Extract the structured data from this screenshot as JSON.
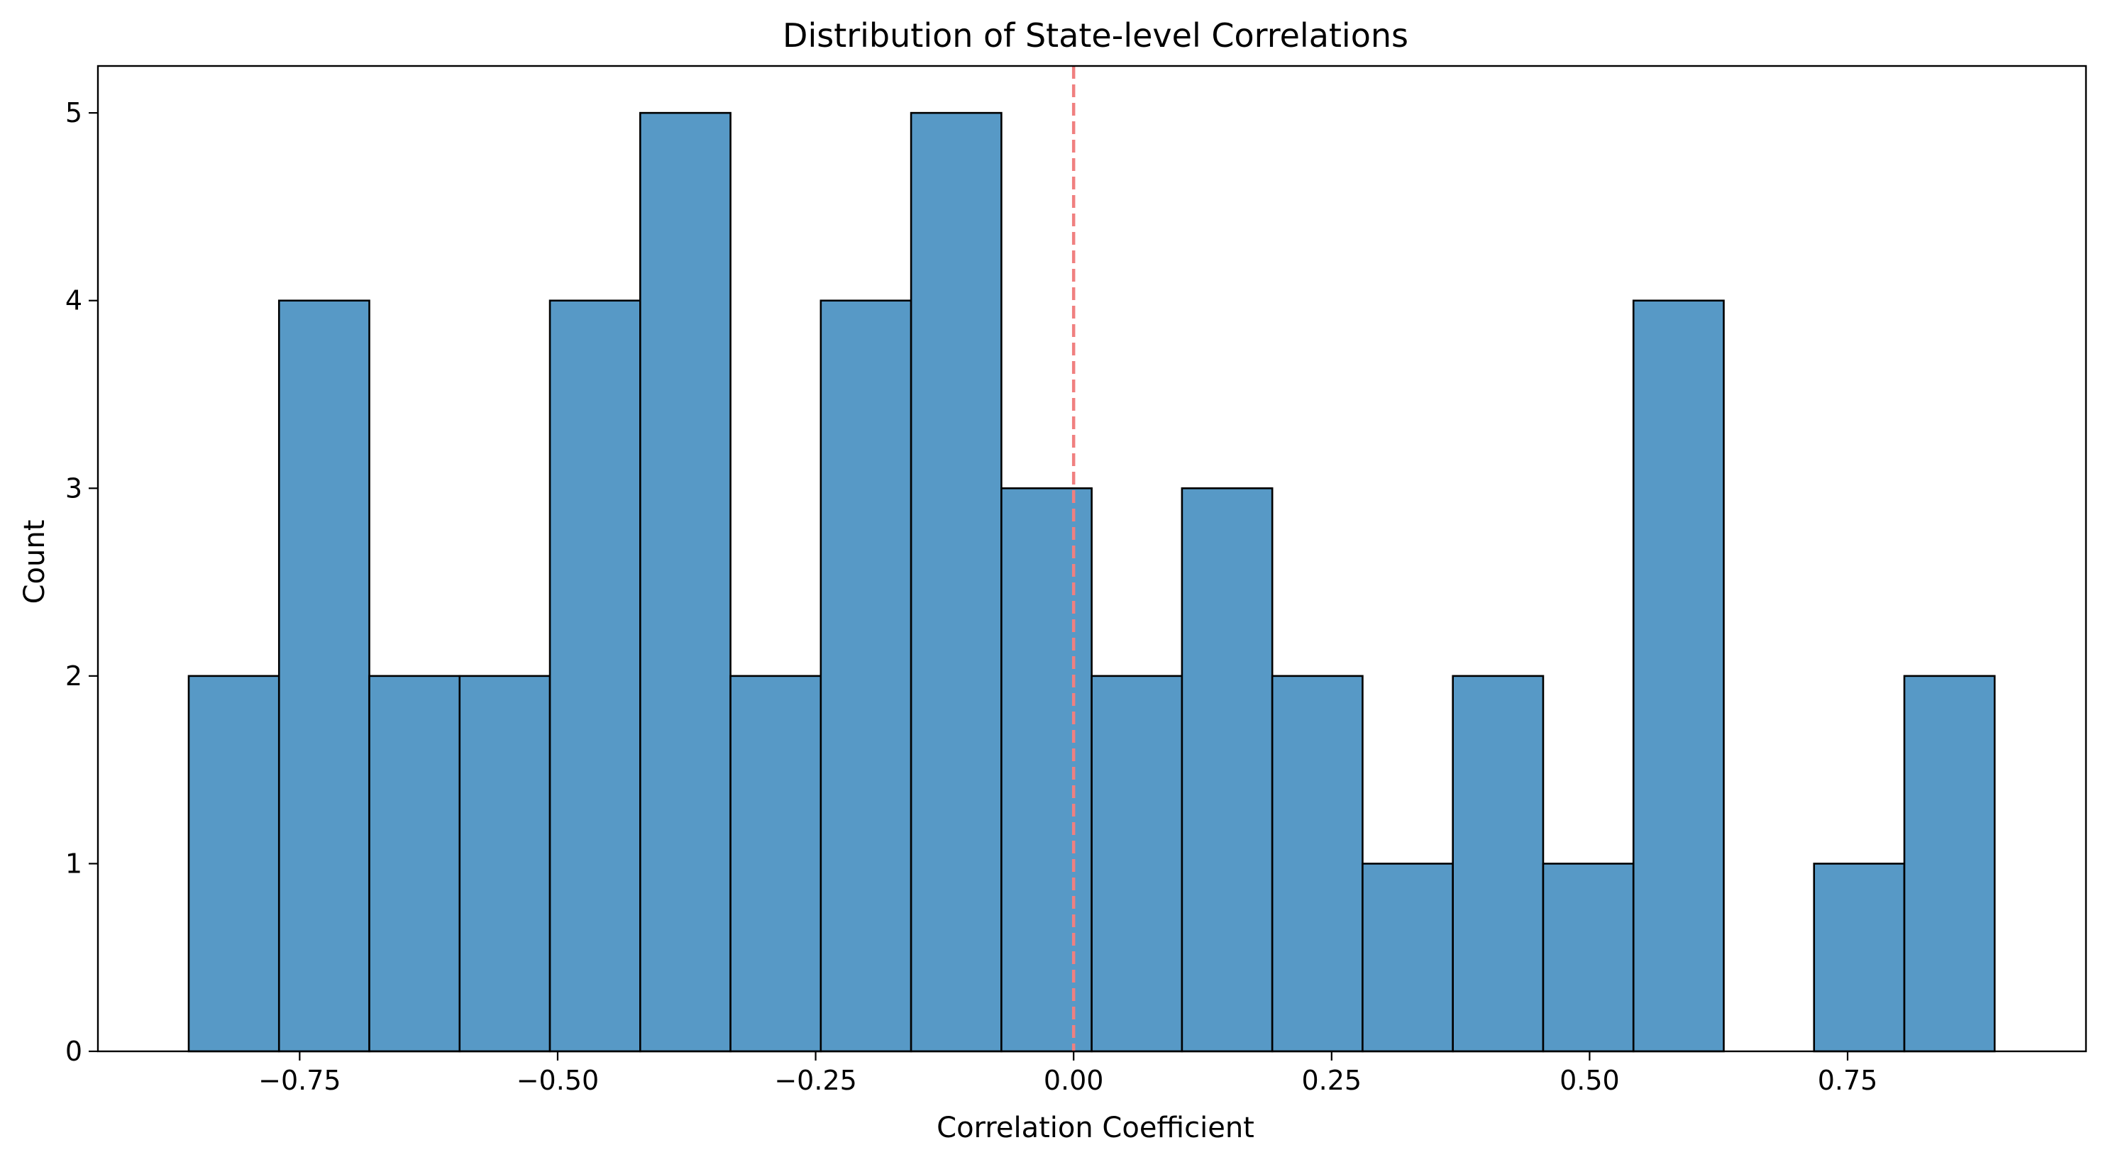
{
  "chart_data": {
    "type": "histogram",
    "title": "Distribution of State-level Correlations",
    "xlabel": "Correlation Coefficient",
    "ylabel": "Count",
    "bin_edges": [
      -0.8575,
      -0.77,
      -0.6825,
      -0.595,
      -0.5075,
      -0.42,
      -0.3325,
      -0.245,
      -0.1575,
      -0.07,
      0.0175,
      0.105,
      0.1925,
      0.28,
      0.3675,
      0.455,
      0.5425,
      0.63,
      0.7175,
      0.805,
      0.8925
    ],
    "counts": [
      2,
      4,
      2,
      2,
      4,
      5,
      2,
      4,
      5,
      3,
      2,
      3,
      2,
      1,
      2,
      1,
      4,
      0,
      1,
      2
    ],
    "xlim": [
      -0.9455,
      0.981
    ],
    "ylim": [
      0,
      5.25
    ],
    "xticks": [
      -0.75,
      -0.5,
      -0.25,
      0.0,
      0.25,
      0.5,
      0.75
    ],
    "xtick_labels": [
      "−0.75",
      "−0.50",
      "−0.25",
      "0.00",
      "0.25",
      "0.50",
      "0.75"
    ],
    "yticks": [
      0,
      1,
      2,
      3,
      4,
      5
    ],
    "ytick_labels": [
      "0",
      "1",
      "2",
      "3",
      "4",
      "5"
    ],
    "reference_line": {
      "x": 0.0,
      "style": "dashed",
      "color": "#f08080"
    },
    "bar_color": "#5799c6",
    "edge_color": "#000000",
    "grid": false,
    "legend": "none"
  }
}
